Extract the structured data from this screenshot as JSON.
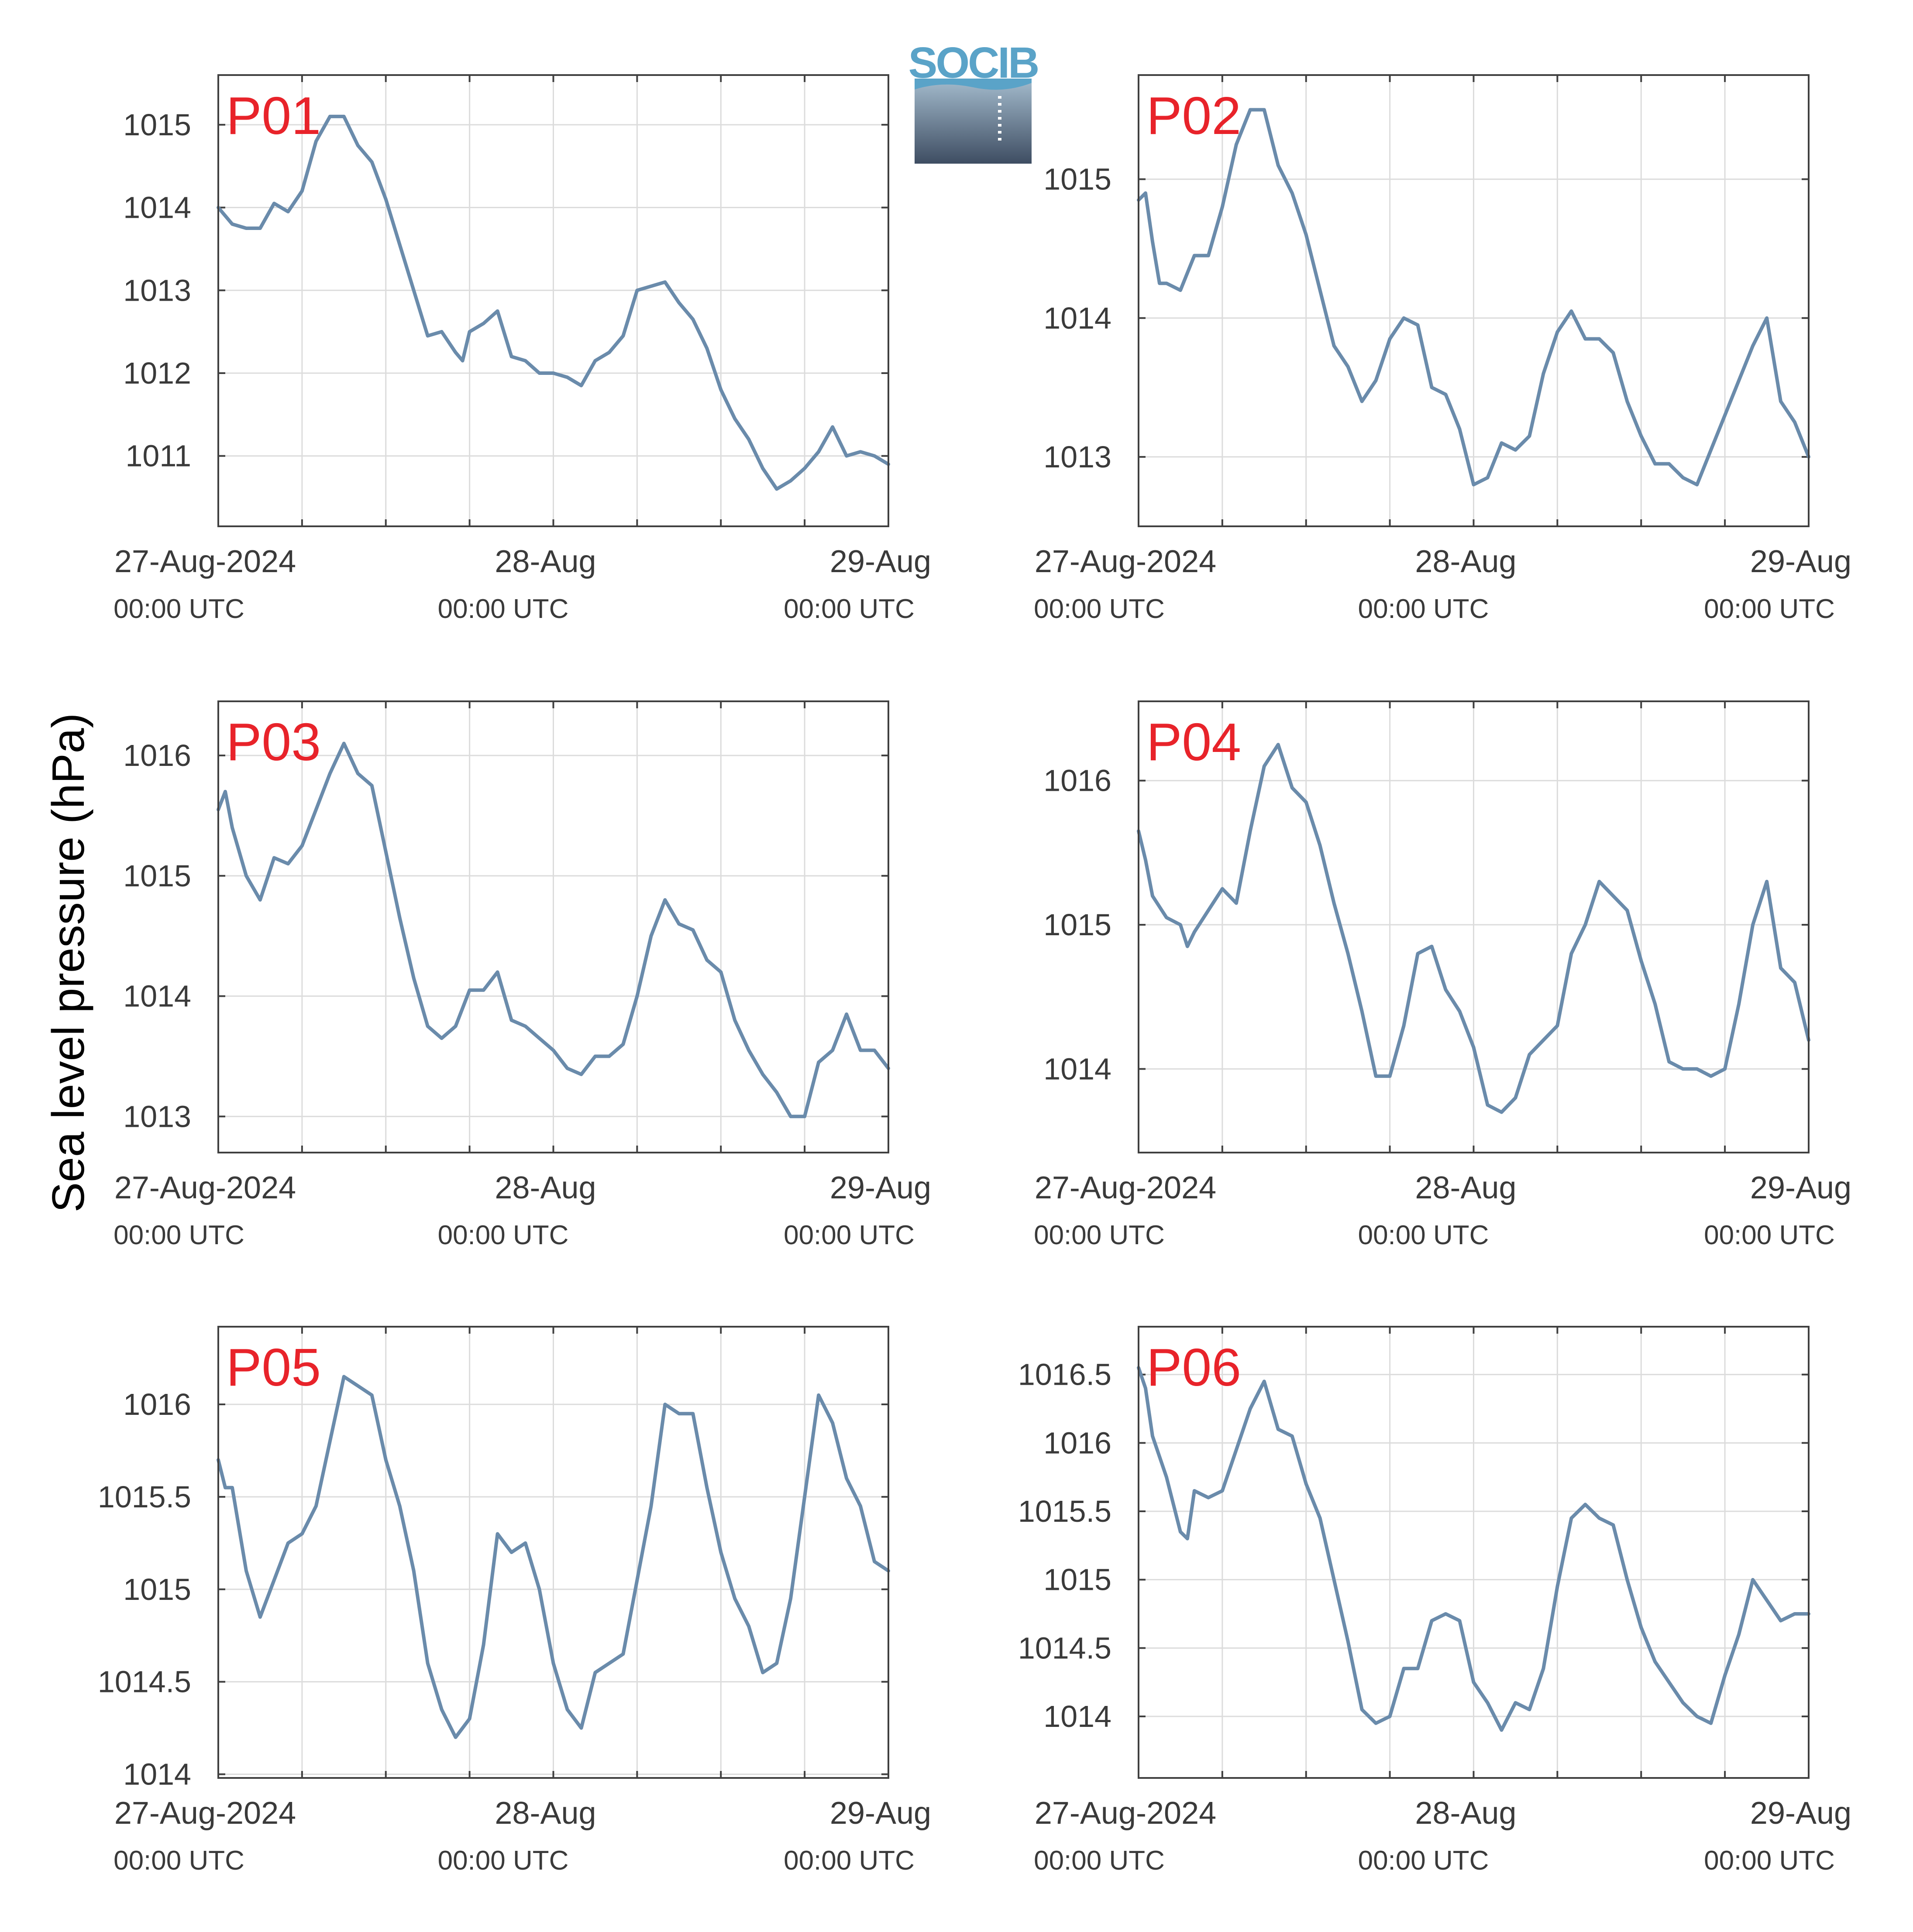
{
  "figure": {
    "ylabel": "Sea level pressure (hPa)",
    "logo_text": "SOCIB",
    "x_ticks": [
      {
        "main": "27-Aug-2024",
        "sub": "00:00 UTC"
      },
      {
        "main": "28-Aug",
        "sub": "00:00 UTC"
      },
      {
        "main": "29-Aug",
        "sub": "00:00 UTC"
      }
    ]
  },
  "colors": {
    "line": "#6a8bab",
    "panel_label": "#e8232a",
    "axis": "#404040",
    "grid": "#dcdcdc",
    "text": "#3a3a3a"
  },
  "chart_data": [
    {
      "type": "line",
      "title": "P01",
      "xlabel": "",
      "ylabel": "Sea level pressure (hPa)",
      "xlim": [
        "2024-08-27T00:00Z",
        "2024-08-29T00:00Z"
      ],
      "ylim": [
        1010.15,
        1015.6
      ],
      "yticks": [
        1011,
        1012,
        1013,
        1014,
        1015
      ],
      "grid": true,
      "x_hours": [
        0,
        1,
        2,
        3,
        4,
        5,
        6,
        7,
        8,
        9,
        10,
        11,
        12,
        13,
        14,
        15,
        16,
        17,
        17.5,
        18,
        19,
        20,
        21,
        22,
        23,
        24,
        25,
        26,
        27,
        28,
        29,
        30,
        31,
        32,
        33,
        34,
        35,
        36,
        37,
        38,
        39,
        40,
        41,
        42,
        43,
        44,
        45,
        46,
        47,
        48
      ],
      "values": [
        1014.0,
        1013.8,
        1013.75,
        1013.75,
        1014.05,
        1013.95,
        1014.2,
        1014.8,
        1015.1,
        1015.1,
        1014.75,
        1014.55,
        1014.1,
        1013.55,
        1013.0,
        1012.45,
        1012.5,
        1012.25,
        1012.15,
        1012.5,
        1012.6,
        1012.75,
        1012.2,
        1012.15,
        1012.0,
        1012.0,
        1011.95,
        1011.85,
        1012.15,
        1012.25,
        1012.45,
        1013.0,
        1013.05,
        1013.1,
        1012.85,
        1012.65,
        1012.3,
        1011.8,
        1011.45,
        1011.2,
        1010.85,
        1010.6,
        1010.7,
        1010.85,
        1011.05,
        1011.35,
        1011.0,
        1011.05,
        1011.0,
        1010.9
      ]
    },
    {
      "type": "line",
      "title": "P02",
      "xlabel": "",
      "ylabel": "Sea level pressure (hPa)",
      "xlim": [
        "2024-08-27T00:00Z",
        "2024-08-29T00:00Z"
      ],
      "ylim": [
        1012.5,
        1015.75
      ],
      "yticks": [
        1013,
        1014,
        1015
      ],
      "grid": true,
      "x_hours": [
        0,
        0.5,
        1,
        1.5,
        2,
        3,
        4,
        5,
        6,
        7,
        8,
        9,
        10,
        11,
        12,
        13,
        14,
        15,
        16,
        17,
        18,
        19,
        20,
        21,
        22,
        23,
        24,
        25,
        26,
        27,
        28,
        29,
        30,
        31,
        32,
        33,
        34,
        35,
        36,
        37,
        38,
        39,
        40,
        41,
        42,
        43,
        44,
        45,
        46,
        47,
        48
      ],
      "values": [
        1014.85,
        1014.9,
        1014.55,
        1014.25,
        1014.25,
        1014.2,
        1014.45,
        1014.45,
        1014.8,
        1015.25,
        1015.5,
        1015.5,
        1015.1,
        1014.9,
        1014.6,
        1014.2,
        1013.8,
        1013.65,
        1013.4,
        1013.55,
        1013.85,
        1014.0,
        1013.95,
        1013.5,
        1013.45,
        1013.2,
        1012.8,
        1012.85,
        1013.1,
        1013.05,
        1013.15,
        1013.6,
        1013.9,
        1014.05,
        1013.85,
        1013.85,
        1013.75,
        1013.4,
        1013.15,
        1012.95,
        1012.95,
        1012.85,
        1012.8,
        1013.05,
        1013.3,
        1013.55,
        1013.8,
        1014.0,
        1013.4,
        1013.25,
        1013.0
      ]
    },
    {
      "type": "line",
      "title": "P03",
      "xlabel": "",
      "ylabel": "Sea level pressure (hPa)",
      "xlim": [
        "2024-08-27T00:00Z",
        "2024-08-29T00:00Z"
      ],
      "ylim": [
        1012.7,
        1016.45
      ],
      "yticks": [
        1013,
        1014,
        1015,
        1016
      ],
      "grid": true,
      "x_hours": [
        0,
        0.5,
        1,
        2,
        3,
        4,
        5,
        6,
        7,
        8,
        9,
        10,
        11,
        12,
        13,
        14,
        15,
        16,
        17,
        18,
        19,
        20,
        21,
        22,
        23,
        24,
        25,
        26,
        27,
        28,
        29,
        30,
        31,
        32,
        33,
        34,
        35,
        36,
        37,
        38,
        39,
        40,
        41,
        42,
        43,
        44,
        45,
        46,
        47,
        48
      ],
      "values": [
        1015.55,
        1015.7,
        1015.4,
        1015.0,
        1014.8,
        1015.15,
        1015.1,
        1015.25,
        1015.55,
        1015.85,
        1016.1,
        1015.85,
        1015.75,
        1015.2,
        1014.65,
        1014.15,
        1013.75,
        1013.65,
        1013.75,
        1014.05,
        1014.05,
        1014.2,
        1013.8,
        1013.75,
        1013.65,
        1013.55,
        1013.4,
        1013.35,
        1013.5,
        1013.5,
        1013.6,
        1014.0,
        1014.5,
        1014.8,
        1014.6,
        1014.55,
        1014.3,
        1014.2,
        1013.8,
        1013.55,
        1013.35,
        1013.2,
        1013.0,
        1013.0,
        1013.45,
        1013.55,
        1013.85,
        1013.55,
        1013.55,
        1013.4
      ]
    },
    {
      "type": "line",
      "title": "P04",
      "xlabel": "",
      "ylabel": "Sea level pressure (hPa)",
      "xlim": [
        "2024-08-27T00:00Z",
        "2024-08-29T00:00Z"
      ],
      "ylim": [
        1013.42,
        1016.55
      ],
      "yticks": [
        1014,
        1015,
        1016
      ],
      "grid": true,
      "x_hours": [
        0,
        0.5,
        1,
        2,
        3,
        3.5,
        4,
        5,
        6,
        7,
        8,
        9,
        10,
        11,
        12,
        13,
        14,
        15,
        16,
        17,
        18,
        19,
        20,
        21,
        22,
        23,
        24,
        25,
        26,
        27,
        28,
        29,
        30,
        31,
        32,
        33,
        34,
        35,
        36,
        37,
        38,
        39,
        40,
        41,
        42,
        43,
        44,
        45,
        46,
        47,
        48
      ],
      "values": [
        1015.65,
        1015.45,
        1015.2,
        1015.05,
        1015.0,
        1014.85,
        1014.95,
        1015.1,
        1015.25,
        1015.15,
        1015.65,
        1016.1,
        1016.25,
        1015.95,
        1015.85,
        1015.55,
        1015.15,
        1014.8,
        1014.4,
        1013.95,
        1013.95,
        1014.3,
        1014.8,
        1014.85,
        1014.55,
        1014.4,
        1014.15,
        1013.75,
        1013.7,
        1013.8,
        1014.1,
        1014.2,
        1014.3,
        1014.8,
        1015.0,
        1015.3,
        1015.2,
        1015.1,
        1014.75,
        1014.45,
        1014.05,
        1014.0,
        1014.0,
        1013.95,
        1014.0,
        1014.45,
        1015.0,
        1015.3,
        1014.7,
        1014.6,
        1014.2
      ]
    },
    {
      "type": "line",
      "title": "P05",
      "xlabel": "",
      "ylabel": "Sea level pressure (hPa)",
      "xlim": [
        "2024-08-27T00:00Z",
        "2024-08-29T00:00Z"
      ],
      "ylim": [
        1013.98,
        1016.42
      ],
      "yticks": [
        1014,
        1014.5,
        1015,
        1015.5,
        1016
      ],
      "grid": true,
      "x_hours": [
        0,
        0.5,
        1,
        2,
        3,
        4,
        5,
        6,
        7,
        8,
        9,
        10,
        11,
        12,
        13,
        14,
        15,
        16,
        17,
        18,
        19,
        20,
        21,
        22,
        23,
        24,
        25,
        26,
        27,
        28,
        29,
        30,
        31,
        32,
        33,
        34,
        35,
        36,
        37,
        38,
        39,
        40,
        41,
        42,
        43,
        44,
        45,
        46,
        47,
        48
      ],
      "values": [
        1015.7,
        1015.55,
        1015.55,
        1015.1,
        1014.85,
        1015.05,
        1015.25,
        1015.3,
        1015.45,
        1015.8,
        1016.15,
        1016.1,
        1016.05,
        1015.7,
        1015.45,
        1015.1,
        1014.6,
        1014.35,
        1014.2,
        1014.3,
        1014.7,
        1015.3,
        1015.2,
        1015.25,
        1015.0,
        1014.6,
        1014.35,
        1014.25,
        1014.55,
        1014.6,
        1014.65,
        1015.05,
        1015.45,
        1016.0,
        1015.95,
        1015.95,
        1015.55,
        1015.2,
        1014.95,
        1014.8,
        1014.55,
        1014.6,
        1014.95,
        1015.5,
        1016.05,
        1015.9,
        1015.6,
        1015.45,
        1015.15,
        1015.1
      ]
    },
    {
      "type": "line",
      "title": "P06",
      "xlabel": "",
      "ylabel": "Sea level pressure (hPa)",
      "xlim": [
        "2024-08-27T00:00Z",
        "2024-08-29T00:00Z"
      ],
      "ylim": [
        1013.55,
        1016.85
      ],
      "yticks": [
        1014,
        1014.5,
        1015,
        1015.5,
        1016,
        1016.5
      ],
      "grid": true,
      "x_hours": [
        0,
        0.5,
        1,
        2,
        3,
        3.5,
        4,
        5,
        6,
        7,
        8,
        9,
        10,
        11,
        12,
        13,
        14,
        15,
        16,
        17,
        18,
        19,
        20,
        21,
        22,
        23,
        24,
        25,
        26,
        27,
        28,
        29,
        30,
        31,
        32,
        33,
        34,
        35,
        36,
        37,
        38,
        39,
        40,
        41,
        42,
        43,
        44,
        45,
        46,
        47,
        48
      ],
      "values": [
        1016.55,
        1016.4,
        1016.05,
        1015.75,
        1015.35,
        1015.3,
        1015.65,
        1015.6,
        1015.65,
        1015.95,
        1016.25,
        1016.45,
        1016.1,
        1016.05,
        1015.7,
        1015.45,
        1015.0,
        1014.55,
        1014.05,
        1013.95,
        1014.0,
        1014.35,
        1014.35,
        1014.7,
        1014.75,
        1014.7,
        1014.25,
        1014.1,
        1013.9,
        1014.1,
        1014.05,
        1014.35,
        1014.95,
        1015.45,
        1015.55,
        1015.45,
        1015.4,
        1015.0,
        1014.65,
        1014.4,
        1014.25,
        1014.1,
        1014.0,
        1013.95,
        1014.3,
        1014.6,
        1015.0,
        1014.85,
        1014.7,
        1014.75,
        1014.75
      ]
    }
  ]
}
